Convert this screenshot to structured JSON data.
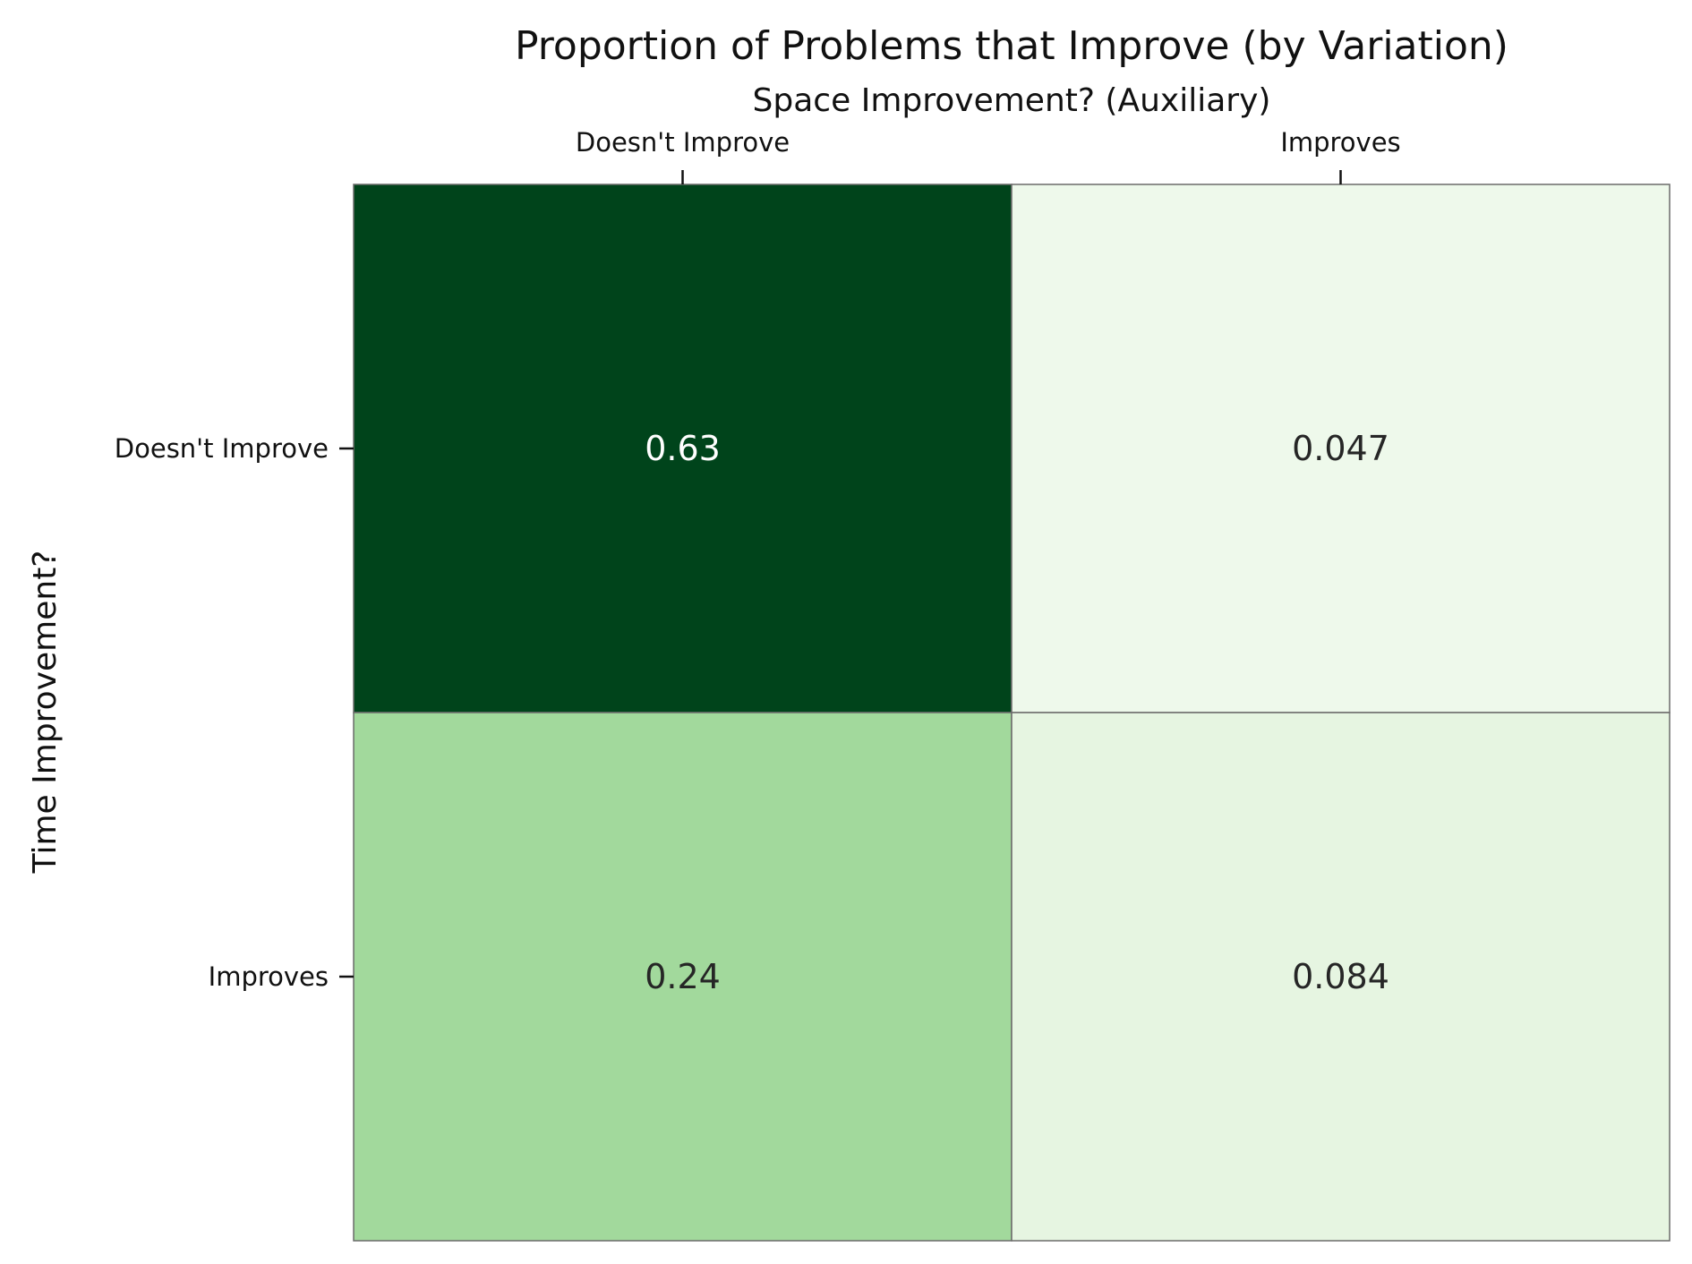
{
  "chart_data": {
    "type": "heatmap",
    "title": "Proportion of Problems that Improve (by Variation)",
    "xlabel": "Space Improvement? (Auxiliary)",
    "ylabel": "Time Improvement?",
    "x_categories": [
      "Doesn't Improve",
      "Improves"
    ],
    "y_categories": [
      "Doesn't Improve",
      "Improves"
    ],
    "values": [
      [
        0.63,
        0.047
      ],
      [
        0.24,
        0.084
      ]
    ],
    "value_labels": [
      [
        "0.63",
        "0.047"
      ],
      [
        "0.24",
        "0.084"
      ]
    ],
    "x_axis_position": "top",
    "colormap": "Greens",
    "colors": {
      "low": "#f7fcf5",
      "high": "#00441b",
      "cell_border": "#6b6b6b",
      "text_dark": "#262626",
      "text_light": "#ffffff"
    },
    "colorbar": false
  }
}
